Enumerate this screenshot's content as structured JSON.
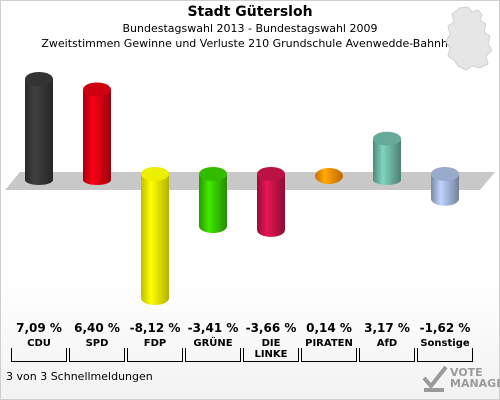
{
  "header": {
    "title": "Stadt Gütersloh",
    "subtitle": "Bundestagswahl 2013 - Bundestagswahl 2009",
    "subtitle2": "Zweitstimmen Gewinne und Verluste 210 Grundschule Avenwedde-Bahnhof"
  },
  "footer": {
    "text": "3 von 3 Schnellmeldungen"
  },
  "logo": {
    "line1": "VOTE",
    "line2": "MANAGER",
    "icon": "checkmark-ballot-icon"
  },
  "chart_data": {
    "type": "bar",
    "categories": [
      "CDU",
      "SPD",
      "FDP",
      "GRÜNE",
      "DIE LINKE",
      "PIRATEN",
      "AfD",
      "Sonstige"
    ],
    "category_labels": [
      "CDU",
      "SPD",
      "FDP",
      "GRÜNE",
      "DIE\nLINKE",
      "PIRATEN",
      "AfD",
      "Sonstige"
    ],
    "values": [
      7.09,
      6.4,
      -8.12,
      -3.41,
      -3.66,
      0.14,
      3.17,
      -1.62
    ],
    "value_labels": [
      "7,09 %",
      "6,40 %",
      "-8,12 %",
      "-3,41 %",
      "-3,66 %",
      "0,14 %",
      "3,17 %",
      "-1,62 %"
    ],
    "colors": [
      "#333333",
      "#cc0011",
      "#eeee00",
      "#33bb00",
      "#bb1144",
      "#ff8800",
      "#66aa99",
      "#99aacc"
    ],
    "ylim": [
      -8.12,
      7.09
    ]
  }
}
